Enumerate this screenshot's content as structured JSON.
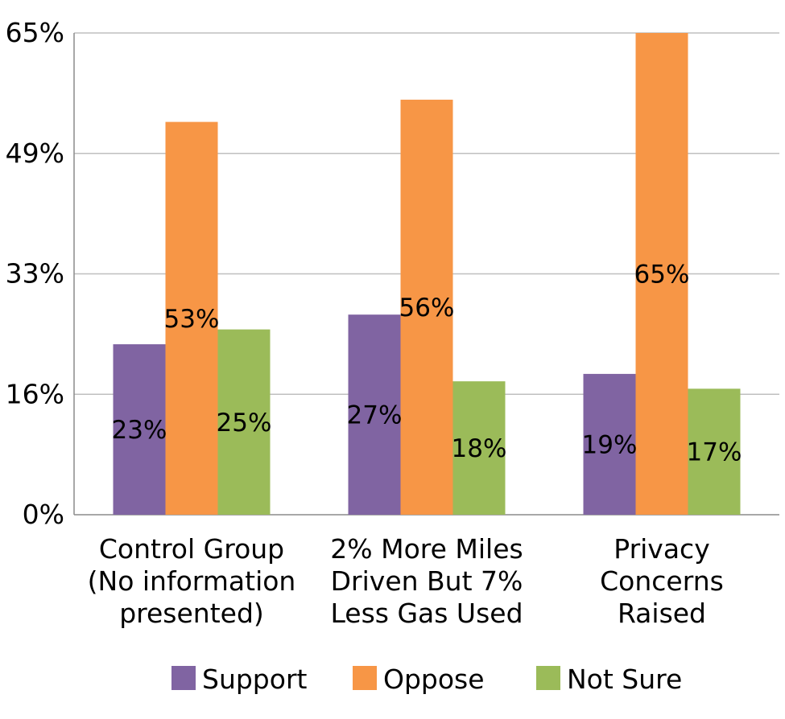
{
  "chart_data": {
    "type": "bar",
    "categories": [
      [
        "Control Group",
        "(No information",
        "presented)"
      ],
      [
        "2% More Miles",
        "Driven But 7%",
        "Less Gas Used"
      ],
      [
        "Privacy",
        "Concerns",
        "Raised"
      ]
    ],
    "series": [
      {
        "name": "Support",
        "color": "#8064a2",
        "values": [
          23,
          27,
          19
        ],
        "labels": [
          "23%",
          "27%",
          "19%"
        ]
      },
      {
        "name": "Oppose",
        "color": "#f79646",
        "values": [
          53,
          56,
          65
        ],
        "labels": [
          "53%",
          "56%",
          "65%"
        ]
      },
      {
        "name": "Not Sure",
        "color": "#9bbb59",
        "values": [
          25,
          18,
          17
        ],
        "labels": [
          "25%",
          "18%",
          "17%"
        ]
      }
    ],
    "y_ticks": [
      0,
      16.25,
      32.5,
      48.75,
      65
    ],
    "y_tick_labels": [
      "0%",
      "16%",
      "33%",
      "49%",
      "65%"
    ],
    "ylim": [
      0,
      65
    ],
    "grid": true,
    "legend_position": "bottom",
    "xlabel": "",
    "ylabel": "",
    "title": ""
  }
}
